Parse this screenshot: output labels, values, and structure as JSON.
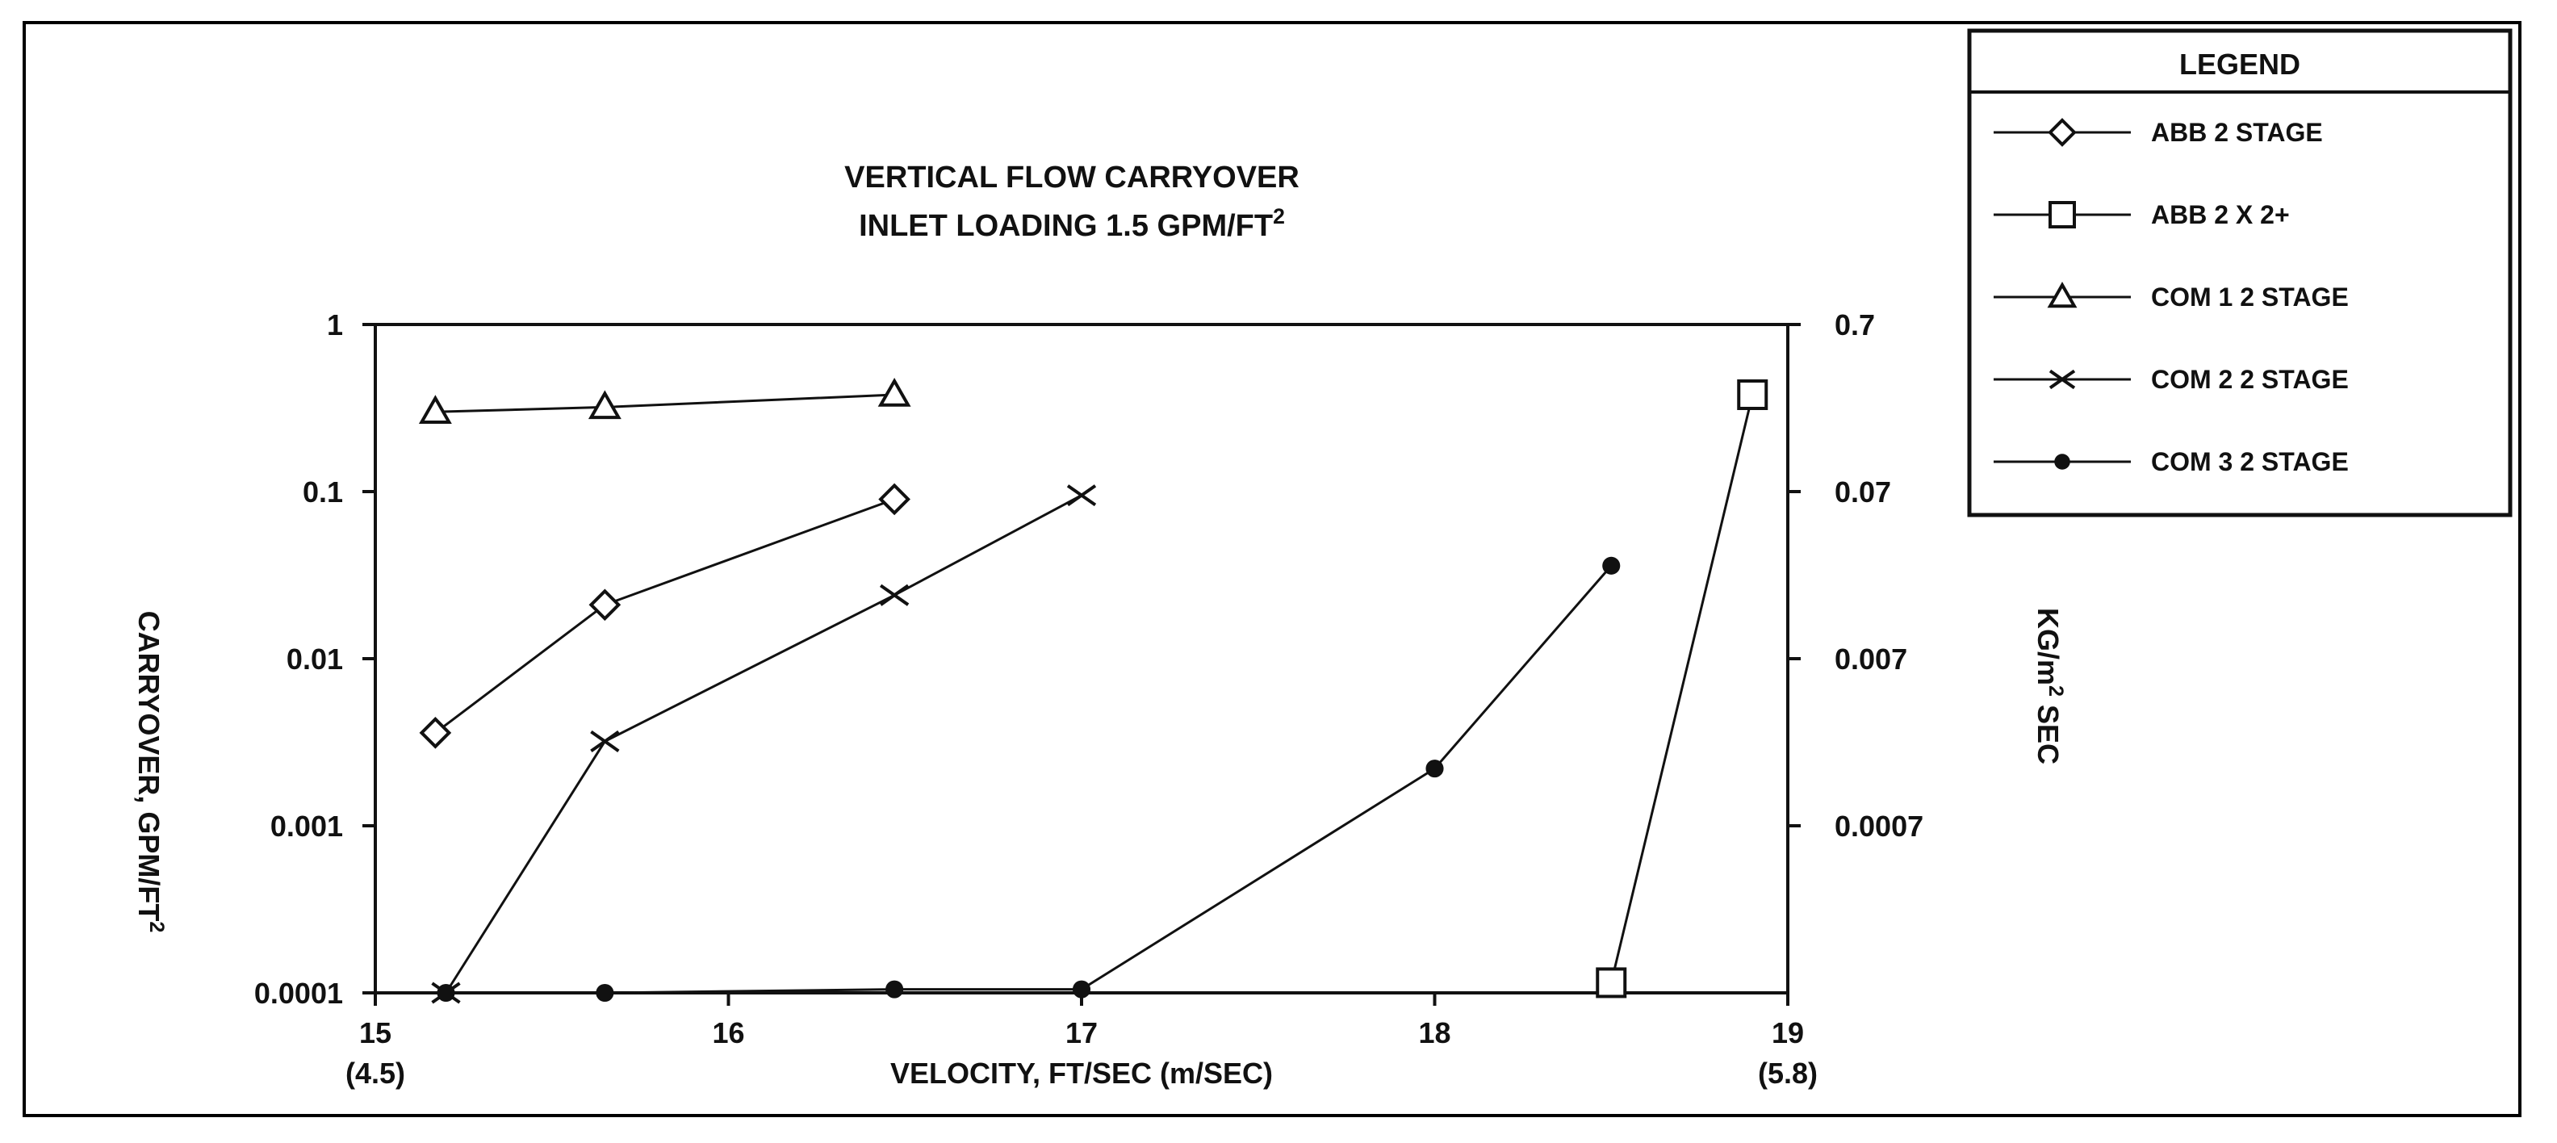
{
  "chart_data": {
    "type": "line",
    "title": [
      "VERTICAL FLOW CARRYOVER",
      "INLET LOADING 1.5 GPM/FT"
    ],
    "title_superscript": "2",
    "xlabel": "VELOCITY,  FT/SEC (m/SEC)",
    "ylabel": "CARRYOVER, GPM/FT",
    "ylabel_superscript": "2",
    "y2label": "KG/m",
    "y2label_superscript": "2",
    "y2label_suffix": " SEC",
    "xlim": [
      15,
      19
    ],
    "ylim": [
      0.0001,
      1
    ],
    "yscale": "log",
    "x_ticks": [
      15,
      16,
      17,
      18,
      19
    ],
    "x_tick_labels": [
      "15",
      "16",
      "17",
      "18",
      "19"
    ],
    "x_secondary_labels": [
      {
        "x": 15,
        "text": "(4.5)"
      },
      {
        "x": 19,
        "text": "(5.8)"
      }
    ],
    "y_ticks": [
      1,
      0.1,
      0.01,
      0.001,
      0.0001
    ],
    "y_tick_labels": [
      "1",
      "0.1",
      "0.01",
      "0.001",
      "0.0001"
    ],
    "y2_tick_labels": [
      "0.7",
      "0.07",
      "0.007",
      "0.0007"
    ],
    "grid": false,
    "legend_title": "LEGEND",
    "legend_position": "top-right, outside plot",
    "series": [
      {
        "name": "ABB 2 STAGE",
        "marker": "diamond",
        "x": [
          15.17,
          15.65,
          16.47
        ],
        "y": [
          0.0036,
          0.021,
          0.09
        ]
      },
      {
        "name": "ABB 2 X 2+",
        "marker": "square",
        "x": [
          18.5,
          18.9
        ],
        "y": [
          0.000115,
          0.38
        ]
      },
      {
        "name": "COM 1  2 STAGE",
        "marker": "triangle",
        "x": [
          15.17,
          15.65,
          16.47
        ],
        "y": [
          0.3,
          0.32,
          0.38
        ]
      },
      {
        "name": "COM 2  2 STAGE",
        "marker": "x",
        "x": [
          15.2,
          15.65,
          16.47,
          17.0
        ],
        "y": [
          0.0001,
          0.0032,
          0.024,
          0.095
        ]
      },
      {
        "name": "COM 3  2 STAGE",
        "marker": "dot",
        "x": [
          15.2,
          15.65,
          16.47,
          17.0,
          18.0,
          18.5
        ],
        "y": [
          0.0001,
          0.0001,
          0.000105,
          0.000105,
          0.0022,
          0.036
        ]
      }
    ]
  }
}
